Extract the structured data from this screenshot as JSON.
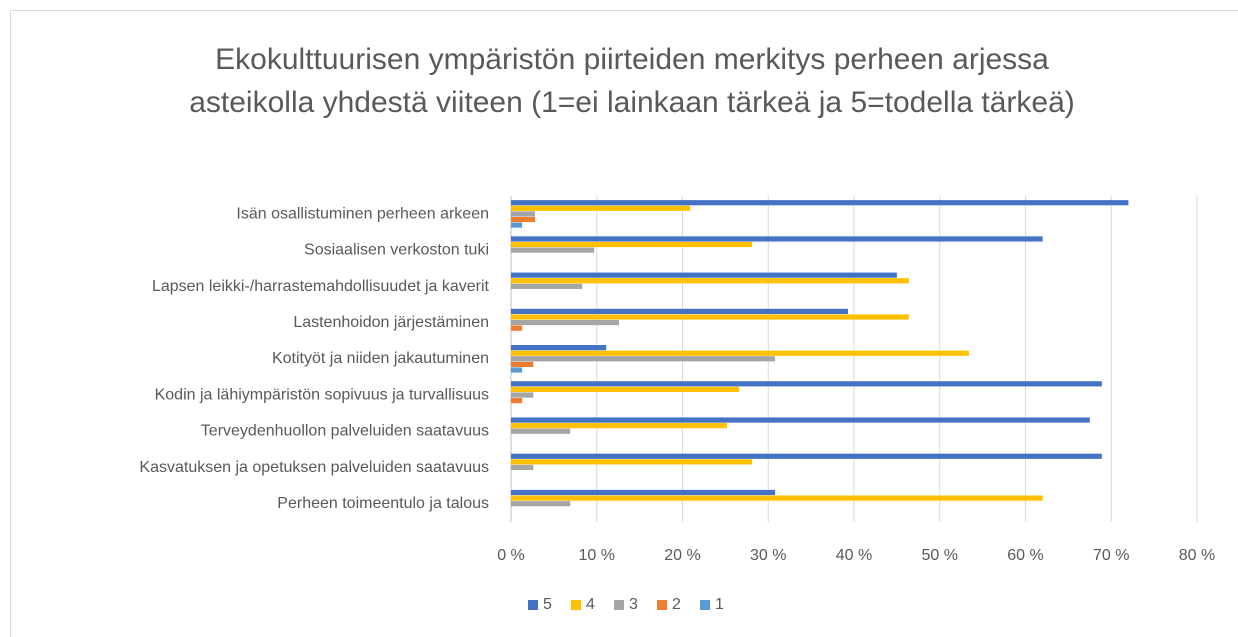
{
  "chart_data": {
    "type": "bar",
    "orientation": "horizontal",
    "title": "Ekokulttuurisen ympäristön piirteiden merkitys perheen arjessa asteikolla yhdestä viiteen (1=ei lainkaan tärkeä ja 5=todella tärkeä)",
    "categories": [
      "Isän osallistuminen perheen arkeen",
      "Sosiaalisen verkoston tuki",
      "Lapsen leikki-/harrastemahdollisuudet ja kaverit",
      "Lastenhoidon järjestäminen",
      "Kotityöt ja niiden jakautuminen",
      "Kodin ja lähiympäristön sopivuus ja turvallisuus",
      "Terveydenhuollon palveluiden saatavuus",
      "Kasvatuksen ja opetuksen palveluiden saatavuus",
      "Perheen toimeentulo ja talous"
    ],
    "series": [
      {
        "name": "5",
        "color": "#4472c4",
        "values": [
          72.0,
          62.0,
          45.0,
          39.3,
          11.1,
          68.9,
          67.5,
          68.9,
          30.8
        ]
      },
      {
        "name": "4",
        "color": "#ffc000",
        "values": [
          20.9,
          28.1,
          46.4,
          46.4,
          53.4,
          26.6,
          25.2,
          28.1,
          62.0
        ]
      },
      {
        "name": "3",
        "color": "#a5a5a5",
        "values": [
          2.8,
          9.7,
          8.3,
          12.6,
          30.8,
          2.6,
          6.9,
          2.6,
          6.9
        ]
      },
      {
        "name": "2",
        "color": "#ed7d31",
        "values": [
          2.8,
          0,
          0,
          1.3,
          2.6,
          1.3,
          0,
          0,
          0
        ]
      },
      {
        "name": "1",
        "color": "#5b9bd5",
        "values": [
          1.3,
          0,
          0,
          0,
          1.3,
          0,
          0,
          0,
          0
        ]
      }
    ],
    "xlim": [
      0,
      80
    ],
    "xticks": [
      {
        "value": 0,
        "label": "0 %"
      },
      {
        "value": 10,
        "label": "10 %"
      },
      {
        "value": 20,
        "label": "20 %"
      },
      {
        "value": 30,
        "label": "30 %"
      },
      {
        "value": 40,
        "label": "40 %"
      },
      {
        "value": 50,
        "label": "50 %"
      },
      {
        "value": 60,
        "label": "60 %"
      },
      {
        "value": 70,
        "label": "70 %"
      },
      {
        "value": 80,
        "label": "80 %"
      }
    ],
    "grid": true,
    "legend": "bottom"
  }
}
